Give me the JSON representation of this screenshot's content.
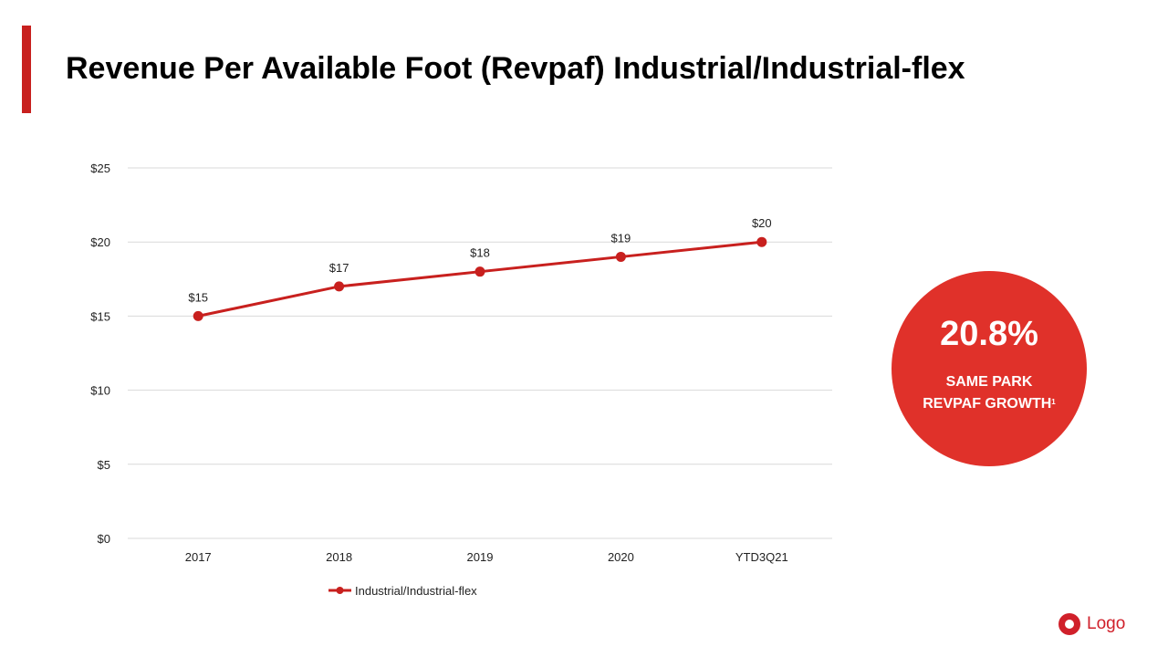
{
  "slide": {
    "title": "Revenue Per Available Foot (Revpaf) Industrial/Industrial-flex",
    "accent_color": "#C8201E"
  },
  "callout": {
    "value": "20.8%",
    "label_line1": "SAME PARK",
    "label_line2": "REVPAF GROWTH",
    "footnote_marker": "1",
    "color": "#E0312A"
  },
  "logo": {
    "text": "Logo",
    "color": "#D0202A"
  },
  "chart_data": {
    "type": "line",
    "categories": [
      "2017",
      "2018",
      "2019",
      "2020",
      "YTD3Q21"
    ],
    "series": [
      {
        "name": "Industrial/Industrial-flex",
        "values": [
          15,
          17,
          18,
          19,
          20
        ],
        "labels": [
          "$15",
          "$17",
          "$18",
          "$19",
          "$20"
        ],
        "color": "#C8201E"
      }
    ],
    "title": "",
    "xlabel": "",
    "ylabel": "",
    "ylim": [
      0,
      25
    ],
    "yticks": [
      0,
      5,
      10,
      15,
      20,
      25
    ],
    "ytick_labels": [
      "$0",
      "$5",
      "$10",
      "$15",
      "$20",
      "$25"
    ],
    "grid": true,
    "legend_position": "bottom"
  }
}
